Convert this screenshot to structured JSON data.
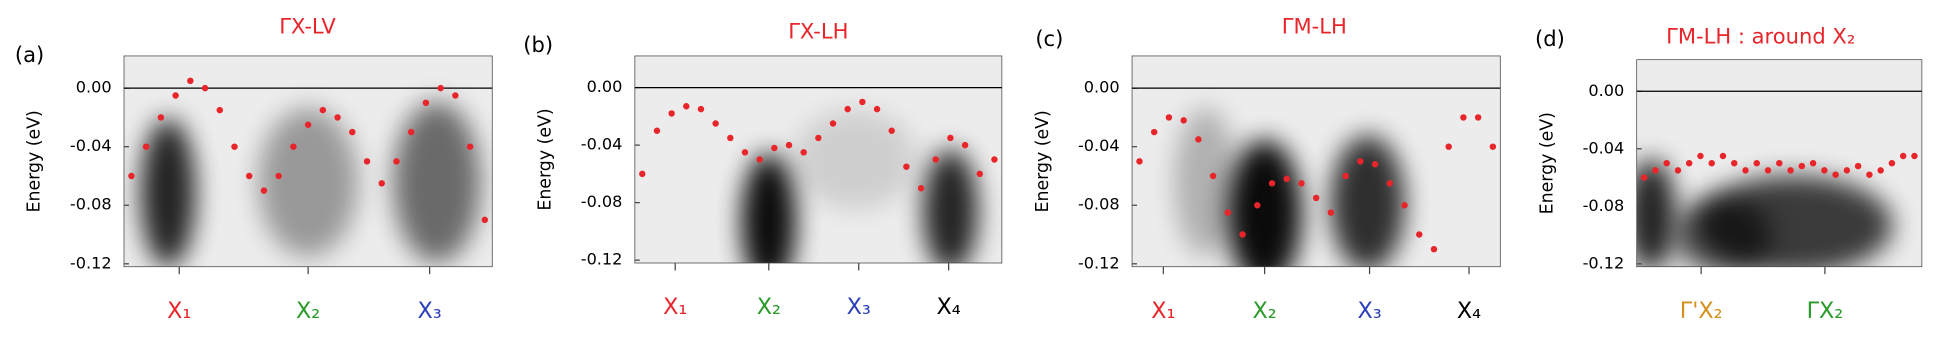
{
  "chart_data": [
    {
      "type": "scatter",
      "panel_label": "(a)",
      "title": "ΓX-LV",
      "y_label": "Energy (eV)",
      "xtick_labels": [
        {
          "text": "X₁",
          "color": "#e8252a"
        },
        {
          "text": "X₂",
          "color": "#2a9a2a"
        },
        {
          "text": "X₃",
          "color": "#2b3fb8"
        }
      ],
      "values": [
        -0.06,
        -0.04,
        -0.02,
        -0.005,
        0.005,
        0.0,
        -0.015,
        -0.04,
        -0.06,
        -0.07,
        -0.06,
        -0.04,
        -0.025,
        -0.015,
        -0.02,
        -0.03,
        -0.05,
        -0.065,
        -0.05,
        -0.03,
        -0.01,
        0.0,
        -0.005,
        -0.04,
        -0.09
      ],
      "color": "#e8252a",
      "ylim": [
        -0.122,
        0.022
      ],
      "yticks": [
        {
          "value": 0,
          "label": "0.00"
        },
        -0.04,
        -0.08,
        -0.12
      ]
    },
    {
      "type": "scatter",
      "panel_label": "(b)",
      "title": "ΓX-LH",
      "y_label": "Energy (eV)",
      "xtick_labels": [
        {
          "text": "X₁",
          "color": "#e8252a"
        },
        {
          "text": "X₂",
          "color": "#2a9a2a"
        },
        {
          "text": "X₃",
          "color": "#2b3fb8"
        },
        {
          "text": "X₄",
          "color": "#000000"
        }
      ],
      "values": [
        -0.06,
        -0.03,
        -0.018,
        -0.013,
        -0.015,
        -0.025,
        -0.035,
        -0.045,
        -0.05,
        -0.042,
        -0.04,
        -0.045,
        -0.035,
        -0.025,
        -0.015,
        -0.01,
        -0.015,
        -0.03,
        -0.055,
        -0.07,
        -0.05,
        -0.035,
        -0.04,
        -0.06,
        -0.05
      ],
      "color": "#e8252a",
      "ylim": [
        -0.122,
        0.022
      ],
      "yticks": [
        {
          "value": 0,
          "label": "0.00"
        },
        -0.04,
        -0.08,
        -0.12
      ]
    },
    {
      "type": "scatter",
      "panel_label": "(c)",
      "title": "ΓM-LH",
      "y_label": "Energy (eV)",
      "xtick_labels": [
        {
          "text": "X₁",
          "color": "#e8252a"
        },
        {
          "text": "X₂",
          "color": "#2a9a2a"
        },
        {
          "text": "X₃",
          "color": "#2b3fb8"
        },
        {
          "text": "X₄",
          "color": "#000000"
        }
      ],
      "values": [
        -0.05,
        -0.03,
        -0.02,
        -0.022,
        -0.035,
        -0.06,
        -0.085,
        -0.1,
        -0.08,
        -0.065,
        -0.062,
        -0.065,
        -0.075,
        -0.085,
        -0.06,
        -0.05,
        -0.052,
        -0.065,
        -0.08,
        -0.1,
        -0.11,
        -0.04,
        -0.02,
        -0.02,
        -0.04
      ],
      "color": "#e8252a",
      "ylim": [
        -0.122,
        0.022
      ],
      "yticks": [
        {
          "value": 0,
          "label": "0.00"
        },
        -0.04,
        -0.08,
        -0.12
      ]
    },
    {
      "type": "scatter",
      "panel_label": "(d)",
      "title": "ΓM-LH : around  X₂",
      "y_label": "Energy (eV)",
      "xtick_labels": [
        {
          "text": "Γ'X₂",
          "color": "#d4901c"
        },
        {
          "text": "ΓX₂",
          "color": "#2a9a2a"
        }
      ],
      "values": [
        -0.06,
        -0.055,
        -0.05,
        -0.055,
        -0.05,
        -0.045,
        -0.05,
        -0.045,
        -0.05,
        -0.055,
        -0.05,
        -0.055,
        -0.05,
        -0.055,
        -0.052,
        -0.05,
        -0.055,
        -0.058,
        -0.055,
        -0.052,
        -0.058,
        -0.055,
        -0.05,
        -0.045,
        -0.045
      ],
      "color": "#e8252a",
      "ylim": [
        -0.122,
        0.022
      ],
      "yticks": [
        {
          "value": 0,
          "label": "0.00"
        },
        -0.04,
        -0.08,
        -0.12
      ]
    }
  ]
}
